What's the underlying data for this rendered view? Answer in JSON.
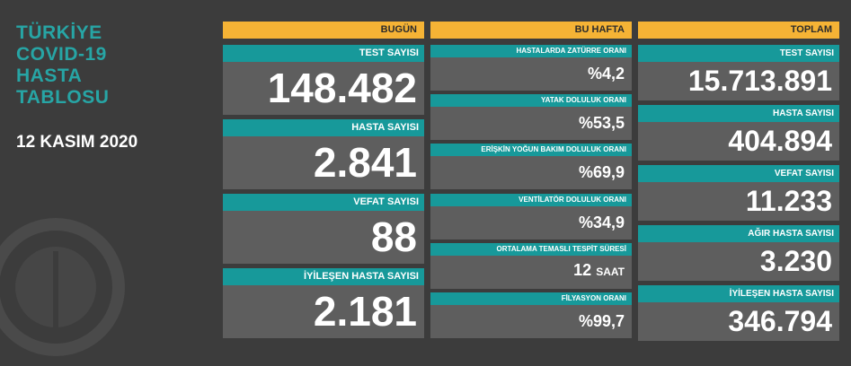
{
  "title_lines": [
    "TÜRKİYE",
    "COVID-19",
    "HASTA",
    "TABLOSU"
  ],
  "date": "12 KASIM 2020",
  "columns": [
    {
      "header": "BUGÜN",
      "items": [
        {
          "label": "TEST SAYISI",
          "value": "148.482"
        },
        {
          "label": "HASTA SAYISI",
          "value": "2.841"
        },
        {
          "label": "VEFAT SAYISI",
          "value": "88"
        },
        {
          "label": "İYİLEŞEN HASTA SAYISI",
          "value": "2.181"
        }
      ]
    },
    {
      "header": "BU HAFTA",
      "items": [
        {
          "label": "HASTALARDA ZATÜRRE ORANI",
          "value": "%4,2"
        },
        {
          "label": "YATAK DOLULUK ORANI",
          "value": "%53,5"
        },
        {
          "label": "ERİŞKİN YOĞUN BAKIM DOLULUK ORANI",
          "value": "%69,9"
        },
        {
          "label": "VENTİLATÖR DOLULUK ORANI",
          "value": "%34,9"
        },
        {
          "label": "ORTALAMA TEMASLI TESPİT SÜRESİ",
          "value": "12",
          "unit": "SAAT"
        },
        {
          "label": "FİLYASYON ORANI",
          "value": "%99,7"
        }
      ]
    },
    {
      "header": "TOPLAM",
      "items": [
        {
          "label": "TEST SAYISI",
          "value": "15.713.891"
        },
        {
          "label": "HASTA SAYISI",
          "value": "404.894"
        },
        {
          "label": "VEFAT SAYISI",
          "value": "11.233"
        },
        {
          "label": "AĞIR HASTA SAYISI",
          "value": "3.230"
        },
        {
          "label": "İYİLEŞEN HASTA SAYISI",
          "value": "346.794"
        }
      ]
    }
  ]
}
